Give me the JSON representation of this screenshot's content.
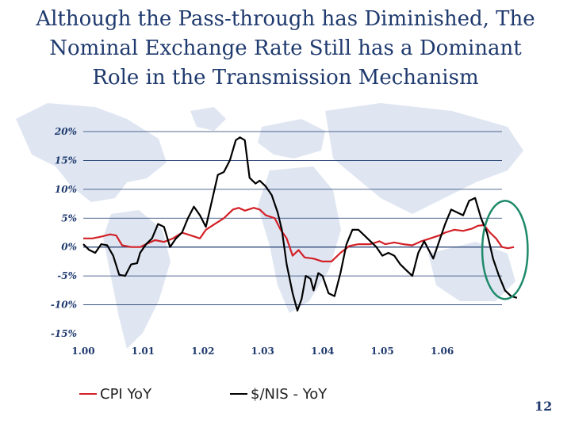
{
  "title_lines": [
    "Although the Pass-through has Diminished, The",
    "Nominal Exchange Rate Still has a Dominant",
    "Role in the Transmission Mechanism"
  ],
  "page_number": "12",
  "colors": {
    "title": "#1f3a6e",
    "cpi": "#d32027",
    "fx": "#000000",
    "axis": "#1f3a6e",
    "highlight": "#1e8a6a"
  },
  "chart_data": {
    "type": "line",
    "title": "",
    "xlabel": "",
    "ylabel": "",
    "ylim": [
      -15,
      20
    ],
    "xlim": [
      2000.0,
      2007.0
    ],
    "x_ticks": [
      {
        "value": 2000.0,
        "label": "1.00"
      },
      {
        "value": 2001.0,
        "label": "1.01"
      },
      {
        "value": 2002.0,
        "label": "1.02"
      },
      {
        "value": 2003.0,
        "label": "1.03"
      },
      {
        "value": 2004.0,
        "label": "1.04"
      },
      {
        "value": 2005.0,
        "label": "1.05"
      },
      {
        "value": 2006.0,
        "label": "1.06"
      }
    ],
    "y_ticks": [
      {
        "value": 20,
        "label": "20%"
      },
      {
        "value": 15,
        "label": "15%"
      },
      {
        "value": 10,
        "label": "10%"
      },
      {
        "value": 5,
        "label": "5%"
      },
      {
        "value": 0,
        "label": "0%"
      },
      {
        "value": -5,
        "label": "-5%"
      },
      {
        "value": -10,
        "label": "-10%"
      },
      {
        "value": -15,
        "label": "-15%"
      }
    ],
    "grid": "horizontal",
    "legend": "bottom",
    "series": [
      {
        "name": "CPI YoY",
        "color": "#d32027",
        "points": [
          [
            2000.0,
            1.5
          ],
          [
            2000.15,
            1.5
          ],
          [
            2000.3,
            1.8
          ],
          [
            2000.45,
            2.2
          ],
          [
            2000.55,
            2.0
          ],
          [
            2000.65,
            0.3
          ],
          [
            2000.8,
            0.0
          ],
          [
            2000.95,
            0.0
          ],
          [
            2001.05,
            0.5
          ],
          [
            2001.2,
            1.2
          ],
          [
            2001.35,
            0.9
          ],
          [
            2001.5,
            1.5
          ],
          [
            2001.65,
            2.5
          ],
          [
            2001.8,
            2.0
          ],
          [
            2001.95,
            1.5
          ],
          [
            2002.05,
            3.0
          ],
          [
            2002.2,
            4.0
          ],
          [
            2002.35,
            5.0
          ],
          [
            2002.5,
            6.5
          ],
          [
            2002.6,
            6.8
          ],
          [
            2002.7,
            6.3
          ],
          [
            2002.85,
            6.8
          ],
          [
            2002.95,
            6.5
          ],
          [
            2003.05,
            5.5
          ],
          [
            2003.2,
            5.0
          ],
          [
            2003.3,
            3.0
          ],
          [
            2003.4,
            1.5
          ],
          [
            2003.5,
            -1.5
          ],
          [
            2003.6,
            -0.5
          ],
          [
            2003.7,
            -1.8
          ],
          [
            2003.85,
            -2.0
          ],
          [
            2004.0,
            -2.5
          ],
          [
            2004.15,
            -2.5
          ],
          [
            2004.3,
            -1.0
          ],
          [
            2004.45,
            0.2
          ],
          [
            2004.6,
            0.5
          ],
          [
            2004.8,
            0.5
          ],
          [
            2004.95,
            1.0
          ],
          [
            2005.05,
            0.5
          ],
          [
            2005.2,
            0.8
          ],
          [
            2005.35,
            0.5
          ],
          [
            2005.5,
            0.3
          ],
          [
            2005.65,
            1.0
          ],
          [
            2005.8,
            1.5
          ],
          [
            2005.95,
            2.0
          ],
          [
            2006.05,
            2.5
          ],
          [
            2006.2,
            3.0
          ],
          [
            2006.35,
            2.8
          ],
          [
            2006.5,
            3.2
          ],
          [
            2006.6,
            3.7
          ],
          [
            2006.7,
            3.8
          ],
          [
            2006.8,
            2.5
          ],
          [
            2006.9,
            1.5
          ],
          [
            2007.0,
            0.0
          ],
          [
            2007.1,
            -0.2
          ],
          [
            2007.2,
            0.0
          ]
        ]
      },
      {
        "name": "$/NIS - YoY",
        "color": "#000000",
        "points": [
          [
            2000.0,
            0.5
          ],
          [
            2000.1,
            -0.5
          ],
          [
            2000.2,
            -1.0
          ],
          [
            2000.3,
            0.5
          ],
          [
            2000.4,
            0.3
          ],
          [
            2000.5,
            -1.5
          ],
          [
            2000.6,
            -4.8
          ],
          [
            2000.7,
            -5.0
          ],
          [
            2000.8,
            -3.0
          ],
          [
            2000.9,
            -2.8
          ],
          [
            2000.95,
            -1.0
          ],
          [
            2001.05,
            0.5
          ],
          [
            2001.15,
            1.5
          ],
          [
            2001.25,
            4.0
          ],
          [
            2001.35,
            3.5
          ],
          [
            2001.45,
            0.0
          ],
          [
            2001.55,
            1.5
          ],
          [
            2001.65,
            2.5
          ],
          [
            2001.75,
            5.0
          ],
          [
            2001.85,
            7.0
          ],
          [
            2001.95,
            5.5
          ],
          [
            2002.05,
            3.5
          ],
          [
            2002.15,
            8.0
          ],
          [
            2002.25,
            12.5
          ],
          [
            2002.35,
            13.0
          ],
          [
            2002.45,
            15.0
          ],
          [
            2002.55,
            18.5
          ],
          [
            2002.62,
            19.0
          ],
          [
            2002.7,
            18.5
          ],
          [
            2002.78,
            12.0
          ],
          [
            2002.88,
            11.0
          ],
          [
            2002.95,
            11.5
          ],
          [
            2003.05,
            10.5
          ],
          [
            2003.15,
            9.0
          ],
          [
            2003.25,
            6.0
          ],
          [
            2003.32,
            3.0
          ],
          [
            2003.4,
            -3.0
          ],
          [
            2003.5,
            -8.0
          ],
          [
            2003.58,
            -11.0
          ],
          [
            2003.65,
            -9.0
          ],
          [
            2003.72,
            -5.0
          ],
          [
            2003.8,
            -5.5
          ],
          [
            2003.85,
            -7.5
          ],
          [
            2003.93,
            -4.5
          ],
          [
            2004.0,
            -5.0
          ],
          [
            2004.1,
            -8.0
          ],
          [
            2004.2,
            -8.5
          ],
          [
            2004.3,
            -4.5
          ],
          [
            2004.4,
            0.5
          ],
          [
            2004.5,
            3.0
          ],
          [
            2004.6,
            3.0
          ],
          [
            2004.7,
            2.0
          ],
          [
            2004.8,
            1.0
          ],
          [
            2004.9,
            0.0
          ],
          [
            2005.0,
            -1.5
          ],
          [
            2005.1,
            -1.0
          ],
          [
            2005.2,
            -1.5
          ],
          [
            2005.3,
            -3.0
          ],
          [
            2005.4,
            -4.0
          ],
          [
            2005.5,
            -5.0
          ],
          [
            2005.6,
            -1.0
          ],
          [
            2005.7,
            1.0
          ],
          [
            2005.8,
            -1.0
          ],
          [
            2005.85,
            -2.0
          ],
          [
            2005.95,
            1.0
          ],
          [
            2006.05,
            4.0
          ],
          [
            2006.15,
            6.5
          ],
          [
            2006.25,
            6.0
          ],
          [
            2006.35,
            5.5
          ],
          [
            2006.45,
            8.0
          ],
          [
            2006.55,
            8.5
          ],
          [
            2006.65,
            5.0
          ],
          [
            2006.75,
            2.5
          ],
          [
            2006.85,
            -2.0
          ],
          [
            2006.95,
            -5.0
          ],
          [
            2007.05,
            -7.5
          ],
          [
            2007.15,
            -8.5
          ],
          [
            2007.25,
            -8.8
          ]
        ]
      }
    ],
    "annotations": [
      {
        "type": "ellipse",
        "x_center": 2007.05,
        "y_center": -0.5,
        "x_radius": 0.38,
        "y_radius": 8.5,
        "color": "#1e8a6a"
      }
    ]
  },
  "legend": {
    "cpi_label": "CPI YoY",
    "fx_label": "$/NIS - YoY"
  }
}
